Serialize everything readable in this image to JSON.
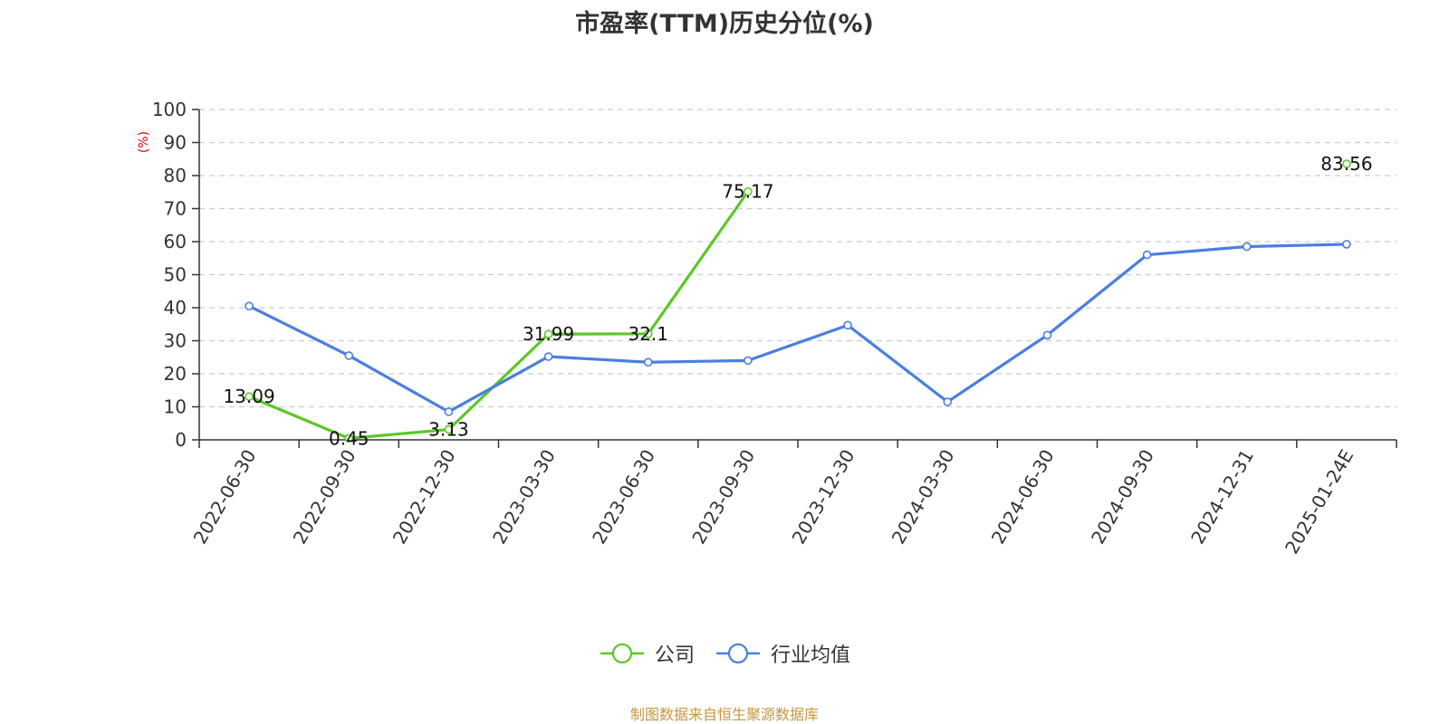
{
  "title": "市盈率(TTM)历史分位(%)",
  "source": "制图数据来自恒生聚源数据库",
  "chart_data": {
    "type": "line",
    "title": "市盈率(TTM)历史分位(%)",
    "ylabel": "(%)",
    "xlabel": "",
    "ylim": [
      0,
      100
    ],
    "yticks": [
      0,
      10,
      20,
      30,
      40,
      50,
      60,
      70,
      80,
      90,
      100
    ],
    "grid": true,
    "legend_position": "bottom",
    "categories": [
      "2022-06-30",
      "2022-09-30",
      "2022-12-30",
      "2023-03-30",
      "2023-06-30",
      "2023-09-30",
      "2023-12-30",
      "2024-03-30",
      "2024-06-30",
      "2024-09-30",
      "2024-12-31",
      "2025-01-24E"
    ],
    "series": [
      {
        "name": "公司",
        "color": "#5cc72a",
        "values": [
          13.09,
          0.45,
          3.13,
          31.99,
          32.1,
          75.17,
          null,
          null,
          null,
          null,
          null,
          83.56
        ],
        "labels": [
          "13.09",
          "0.45",
          "3.13",
          "31.99",
          "32.1",
          "75.17",
          "",
          "",
          "",
          "",
          "",
          "83.56"
        ]
      },
      {
        "name": "行业均值",
        "color": "#4a7fe0",
        "values": [
          40.5,
          25.5,
          8.5,
          25.2,
          23.5,
          24,
          34.7,
          11.5,
          31.7,
          56,
          58.5,
          59.2
        ]
      }
    ]
  }
}
